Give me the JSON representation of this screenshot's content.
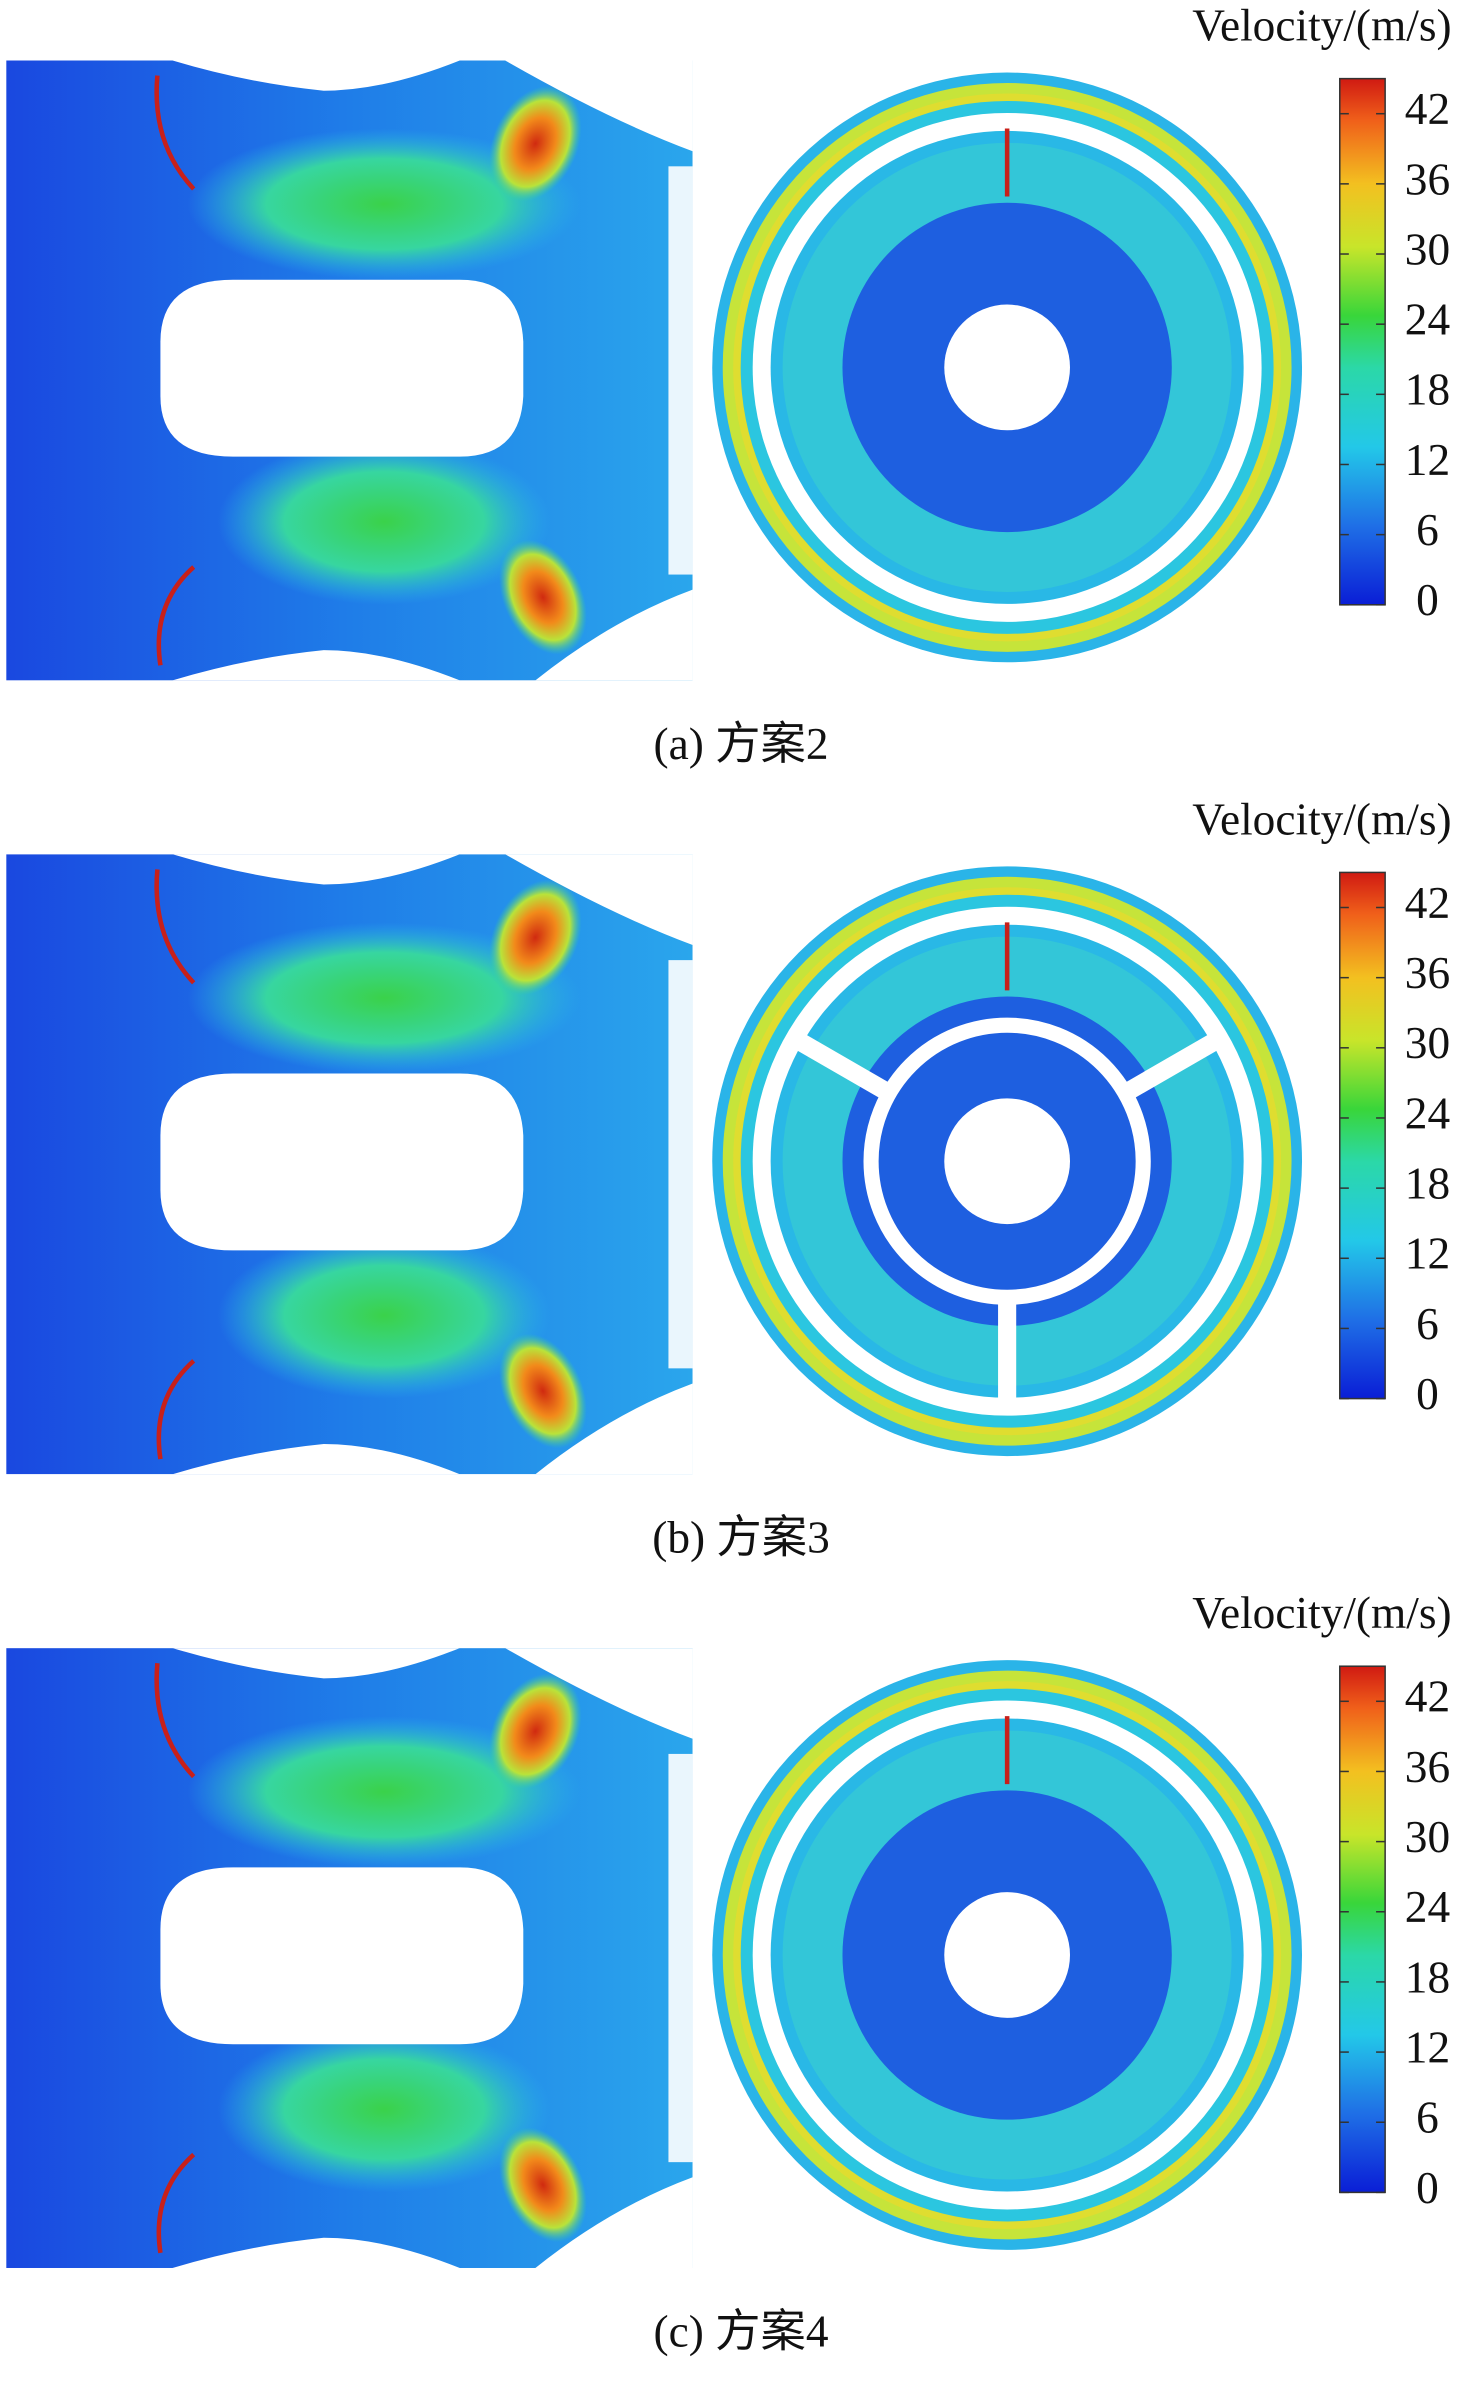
{
  "panels": [
    {
      "caption": "(a) 方案2",
      "colorbar": {
        "title": "Velocity/(m/s)",
        "range": [
          0,
          45
        ],
        "ticks": [
          0,
          6,
          12,
          18,
          24,
          30,
          36,
          42
        ]
      }
    },
    {
      "caption": "(b) 方案3",
      "colorbar": {
        "title": "Velocity/(m/s)",
        "range": [
          0,
          45
        ],
        "ticks": [
          0,
          6,
          12,
          18,
          24,
          30,
          36,
          42
        ]
      }
    },
    {
      "caption": "(c) 方案4",
      "colorbar": {
        "title": "Velocity/(m/s)",
        "range": [
          0,
          45
        ],
        "ticks": [
          0,
          6,
          12,
          18,
          24,
          30,
          36,
          42
        ]
      }
    }
  ]
}
